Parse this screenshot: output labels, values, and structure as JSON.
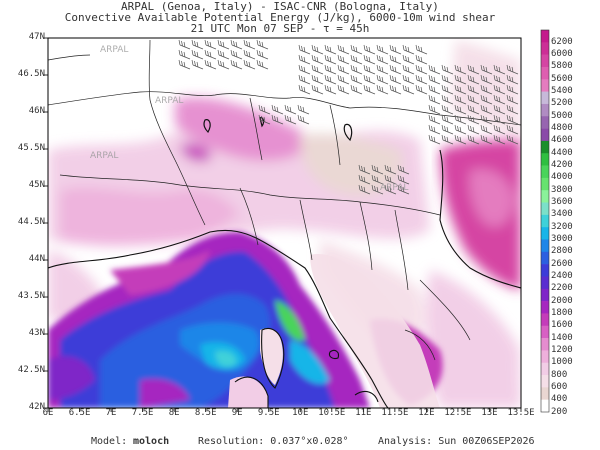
{
  "header": {
    "line1": "ARPAL (Genoa, Italy)  -  ISAC-CNR (Bologna, Italy)",
    "line2": "Convective Available Potential Energy (J/kg), 6000-10m wind shear",
    "line3": "21 UTC Mon 07 SEP  -  τ = 45h"
  },
  "map": {
    "lat_labels": [
      "47N",
      "46.5N",
      "46N",
      "45.5N",
      "45N",
      "44.5N",
      "44N",
      "43.5N",
      "43N",
      "42.5N",
      "42N"
    ],
    "lon_labels": [
      "6E",
      "6.5E",
      "7E",
      "7.5E",
      "8E",
      "8.5E",
      "9E",
      "9.5E",
      "10E",
      "10.5E",
      "11E",
      "11.5E",
      "12E",
      "12.5E",
      "13E",
      "13.5E"
    ],
    "watermark": "ARPAL",
    "lat_range": [
      42,
      47
    ],
    "lon_range": [
      6,
      13.5
    ]
  },
  "colorbar": {
    "labels": [
      "6200",
      "6000",
      "5800",
      "5600",
      "5400",
      "5200",
      "5000",
      "4800",
      "4600",
      "4400",
      "4200",
      "4000",
      "3800",
      "3600",
      "3400",
      "3200",
      "3000",
      "2800",
      "2600",
      "2400",
      "2200",
      "2000",
      "1800",
      "1600",
      "1400",
      "1200",
      "1000",
      "800",
      "600",
      "400",
      "200"
    ],
    "colors": [
      "#c41a8c",
      "#cc2e96",
      "#d545a3",
      "#de5fb0",
      "#e47cbf",
      "#c7b9d9",
      "#b08cc2",
      "#9765b0",
      "#8a4aa8",
      "#1a8f2a",
      "#2fbf40",
      "#4ad45a",
      "#66e36e",
      "#8af29a",
      "#7be0c9",
      "#3fd1d9",
      "#19b5e8",
      "#1e86e8",
      "#2b5fe0",
      "#3c3cd8",
      "#5a2dd0",
      "#7f25c8",
      "#a626c0",
      "#c43cba",
      "#d860c4",
      "#e58ccf",
      "#eeb0dc",
      "#f2cde6",
      "#f5dfe8",
      "#e9d6d2",
      "#ffffff"
    ]
  },
  "footer": {
    "model_label": "Model:",
    "model_name": "moloch",
    "resolution": "Resolution: 0.037°x0.028°",
    "analysis": "Analysis: Sun 00Z06SEP2026"
  }
}
